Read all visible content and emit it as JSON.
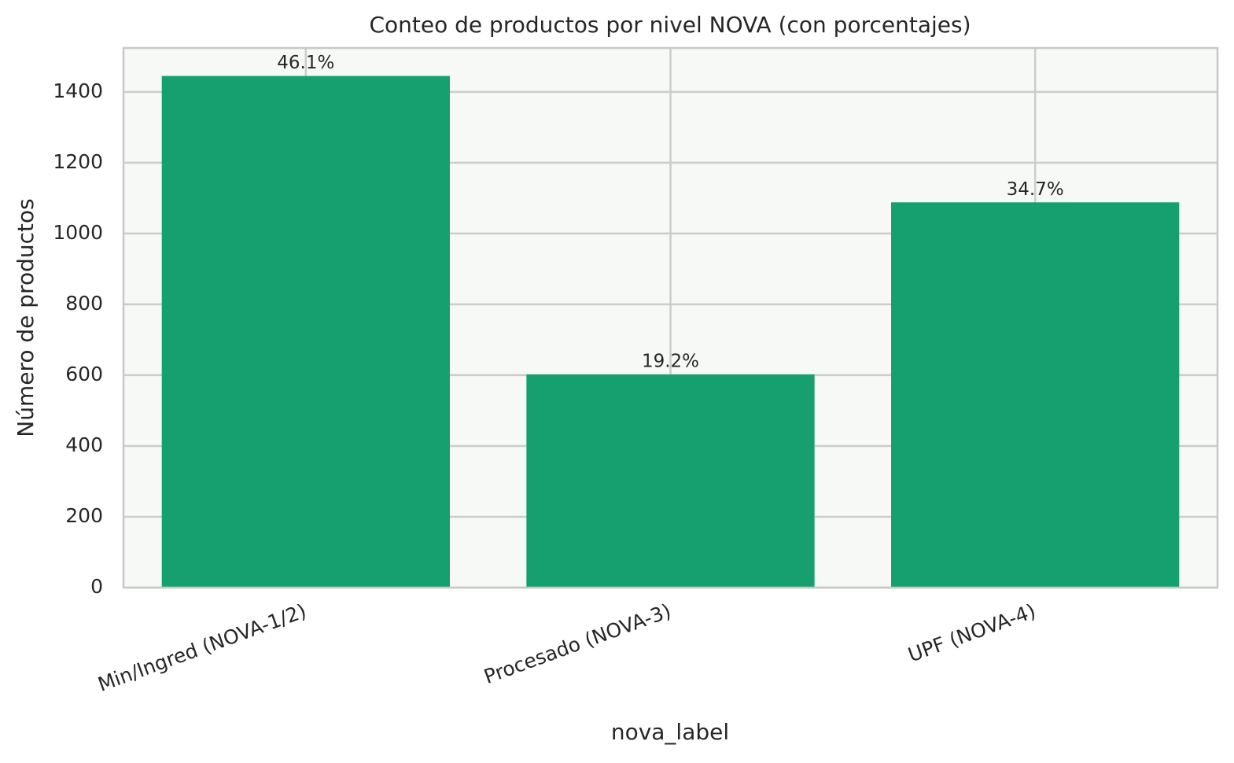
{
  "chart_data": {
    "type": "bar",
    "title": "Conteo de productos por nivel NOVA (con porcentajes)",
    "x_label": "nova_label",
    "y_label": "Número de productos",
    "categories": [
      "Min/Ingred (NOVA-1/2)",
      "Procesado (NOVA-3)",
      "UPF (NOVA-4)"
    ],
    "values": [
      1445,
      602,
      1088
    ],
    "percentages": [
      {
        "value": 46.1,
        "label": "46.1%"
      },
      {
        "value": 19.2,
        "label": "19.2%"
      },
      {
        "value": 34.7,
        "label": "34.7%"
      }
    ],
    "color": "#16a070",
    "ylim": [
      0,
      1524
    ],
    "yticks": [
      0,
      200,
      400,
      600,
      800,
      1000,
      1200,
      1400
    ],
    "grid": true
  }
}
